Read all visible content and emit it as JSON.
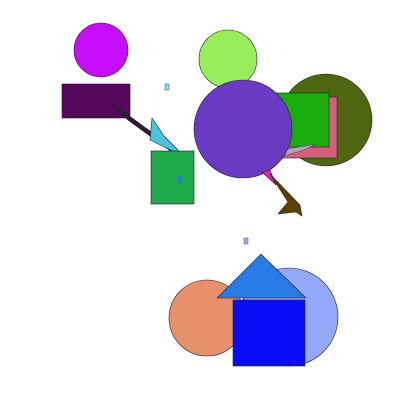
{
  "scene": {
    "background": "#ffffff",
    "shapes": [
      {
        "name": "magenta-circle",
        "kind": "circle",
        "fill": "#c60df9"
      },
      {
        "name": "dark-purple-rectangle",
        "kind": "rect",
        "fill": "#55075e"
      },
      {
        "name": "dark-wedge",
        "kind": "polygon",
        "fill": "#2a1a33"
      },
      {
        "name": "cyan-triangle",
        "kind": "polygon",
        "fill": "#49c3de"
      },
      {
        "name": "green-rectangle",
        "kind": "rect",
        "fill": "#1daa4d"
      },
      {
        "name": "small-blue-mark",
        "kind": "rect",
        "fill": "#2a7bd6"
      },
      {
        "name": "tiny-cyan-square",
        "kind": "rect",
        "fill": "#7fe0ea"
      },
      {
        "name": "light-green-circle",
        "kind": "circle",
        "fill": "#97ed5a"
      },
      {
        "name": "olive-circle",
        "kind": "circle",
        "fill": "#4c6710"
      },
      {
        "name": "pink-rectangle",
        "kind": "rect",
        "fill": "#d5607e"
      },
      {
        "name": "bright-green-rectangle",
        "kind": "rect",
        "fill": "#19ac0b"
      },
      {
        "name": "grey-sliver",
        "kind": "polygon",
        "fill": "#a9a9b8"
      },
      {
        "name": "purple-circle",
        "kind": "circle",
        "fill": "#6a3ac4"
      },
      {
        "name": "pink-triangle",
        "kind": "polygon",
        "fill": "#e21fc3"
      },
      {
        "name": "brown-arrow",
        "kind": "polygon",
        "fill": "#5a4103"
      },
      {
        "name": "tiny-lavender-square",
        "kind": "rect",
        "fill": "#aab0ee"
      },
      {
        "name": "salmon-circle",
        "kind": "circle",
        "fill": "#e6906c"
      },
      {
        "name": "periwinkle-circle",
        "kind": "circle",
        "fill": "#94a8f9"
      },
      {
        "name": "black-sliver",
        "kind": "rect",
        "fill": "#111111"
      },
      {
        "name": "blue-square",
        "kind": "rect",
        "fill": "#0a0cf8"
      },
      {
        "name": "azure-triangle",
        "kind": "polygon",
        "fill": "#2a7ae6"
      }
    ]
  }
}
